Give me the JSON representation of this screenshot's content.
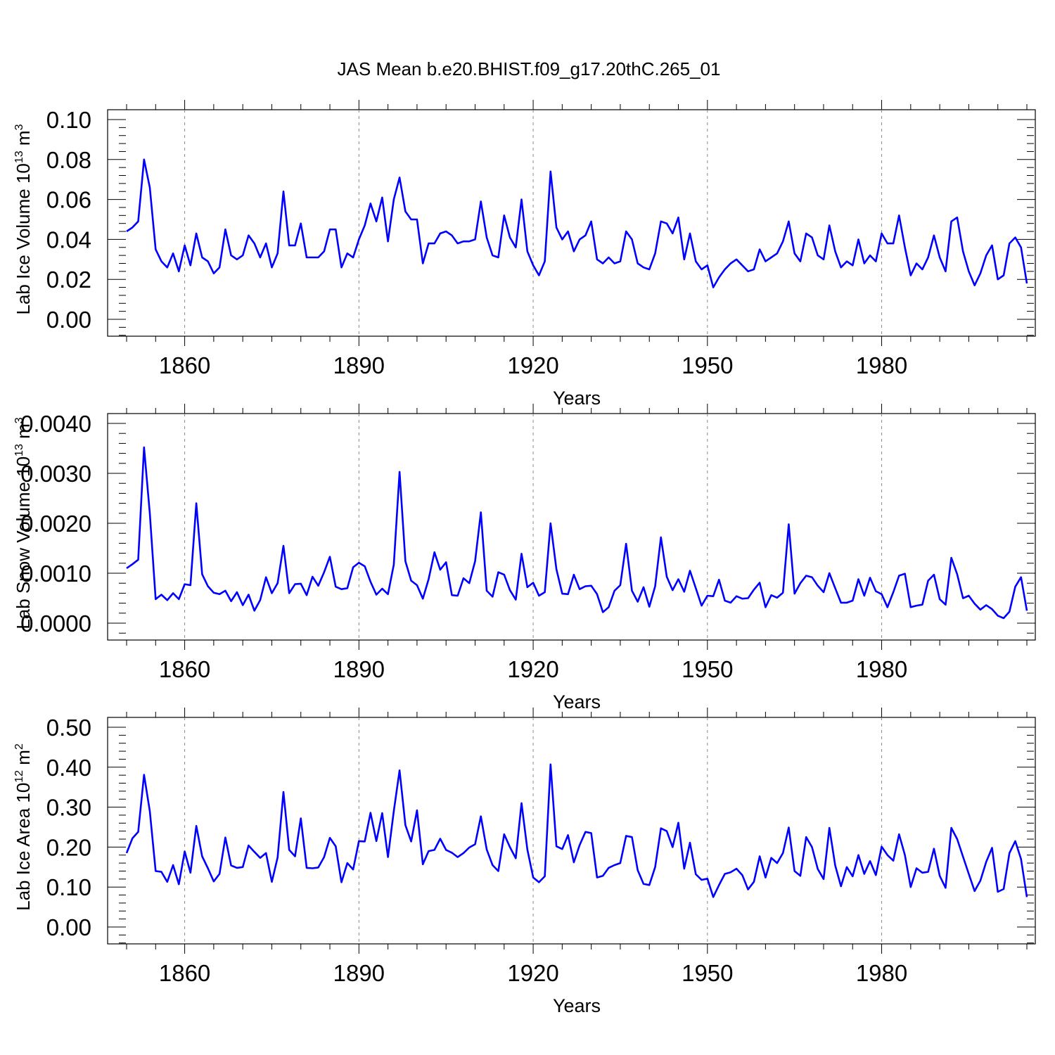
{
  "title": "JAS Mean b.e20.BHIST.f09_g17.20thC.265_01",
  "chart_data": [
    {
      "type": "line",
      "title": "JAS Mean b.e20.BHIST.f09_g17.20thC.265_01",
      "xlabel": "Years",
      "ylabel_main": "Lab Ice Volume 10",
      "ylabel_exp": "13",
      "ylabel_unit": " m",
      "ylabel_unit_exp": "3",
      "xlim": [
        1850,
        2005
      ],
      "ylim": [
        0,
        0.1
      ],
      "x_ticks": [
        1860,
        1890,
        1920,
        1950,
        1980
      ],
      "y_ticks": [
        "0.00",
        "0.02",
        "0.04",
        "0.06",
        "0.08",
        "0.10"
      ],
      "y_tick_values": [
        0,
        0.02,
        0.04,
        0.06,
        0.08,
        0.1
      ],
      "grid": "vertical dashed at labeled years",
      "series": [
        {
          "color": "#0000ff",
          "x_start": 1850,
          "values": [
            0.044,
            0.046,
            0.049,
            0.08,
            0.066,
            0.035,
            0.029,
            0.026,
            0.033,
            0.024,
            0.037,
            0.027,
            0.043,
            0.031,
            0.029,
            0.023,
            0.026,
            0.045,
            0.032,
            0.03,
            0.032,
            0.042,
            0.038,
            0.031,
            0.038,
            0.026,
            0.033,
            0.064,
            0.037,
            0.037,
            0.048,
            0.031,
            0.031,
            0.031,
            0.034,
            0.045,
            0.045,
            0.026,
            0.033,
            0.031,
            0.04,
            0.047,
            0.058,
            0.049,
            0.061,
            0.039,
            0.06,
            0.071,
            0.054,
            0.05,
            0.05,
            0.028,
            0.038,
            0.038,
            0.043,
            0.044,
            0.042,
            0.038,
            0.039,
            0.039,
            0.04,
            0.059,
            0.041,
            0.032,
            0.031,
            0.052,
            0.041,
            0.036,
            0.06,
            0.034,
            0.027,
            0.022,
            0.029,
            0.074,
            0.046,
            0.04,
            0.044,
            0.034,
            0.04,
            0.042,
            0.049,
            0.03,
            0.028,
            0.031,
            0.028,
            0.029,
            0.044,
            0.04,
            0.028,
            0.026,
            0.025,
            0.033,
            0.049,
            0.048,
            0.043,
            0.051,
            0.03,
            0.043,
            0.029,
            0.025,
            0.027,
            0.016,
            0.021,
            0.025,
            0.028,
            0.03,
            0.027,
            0.024,
            0.025,
            0.035,
            0.029,
            0.031,
            0.033,
            0.039,
            0.049,
            0.033,
            0.029,
            0.043,
            0.041,
            0.032,
            0.03,
            0.047,
            0.034,
            0.026,
            0.029,
            0.027,
            0.04,
            0.028,
            0.032,
            0.029,
            0.043,
            0.038,
            0.038,
            0.052,
            0.036,
            0.022,
            0.028,
            0.025,
            0.031,
            0.042,
            0.031,
            0.024,
            0.049,
            0.051,
            0.034,
            0.024,
            0.017,
            0.023,
            0.032,
            0.037,
            0.02,
            0.022,
            0.038,
            0.041,
            0.036,
            0.018
          ]
        }
      ]
    },
    {
      "type": "line",
      "xlabel": "Years",
      "ylabel_main": "Lab Snow Volume 10",
      "ylabel_exp": "13",
      "ylabel_unit": " m",
      "ylabel_unit_exp": "3",
      "xlim": [
        1850,
        2005
      ],
      "ylim": [
        0,
        0.004
      ],
      "x_ticks": [
        1860,
        1890,
        1920,
        1950,
        1980
      ],
      "y_ticks": [
        "0.0000",
        "0.0010",
        "0.0020",
        "0.0030",
        "0.0040"
      ],
      "y_tick_values": [
        0,
        0.001,
        0.002,
        0.003,
        0.004
      ],
      "grid": "vertical dashed at labeled years",
      "series": [
        {
          "color": "#0000ff",
          "x_start": 1850,
          "values": [
            0.0011,
            0.00118,
            0.00127,
            0.00352,
            0.0022,
            0.00048,
            0.00057,
            0.00046,
            0.0006,
            0.00048,
            0.00078,
            0.00076,
            0.0024,
            0.00098,
            0.00074,
            0.00061,
            0.00058,
            0.00065,
            0.00044,
            0.00062,
            0.00036,
            0.00057,
            0.00025,
            0.00046,
            0.00092,
            0.0006,
            0.0008,
            0.00155,
            0.0006,
            0.00078,
            0.00079,
            0.00056,
            0.00093,
            0.00075,
            0.00102,
            0.00133,
            0.00073,
            0.00068,
            0.0007,
            0.00112,
            0.00121,
            0.00114,
            0.00083,
            0.00057,
            0.00069,
            0.00058,
            0.00117,
            0.00303,
            0.00124,
            0.00085,
            0.00076,
            0.00049,
            0.00088,
            0.00142,
            0.00107,
            0.00122,
            0.00056,
            0.00055,
            0.0009,
            0.0008,
            0.00124,
            0.00222,
            0.00065,
            0.00053,
            0.00102,
            0.00097,
            0.00066,
            0.00047,
            0.00139,
            0.00072,
            0.00081,
            0.00055,
            0.00062,
            0.002,
            0.00108,
            0.00059,
            0.00058,
            0.00097,
            0.00068,
            0.00074,
            0.00075,
            0.00058,
            0.00022,
            0.00032,
            0.00065,
            0.00076,
            0.00159,
            0.00065,
            0.00043,
            0.00072,
            0.00033,
            0.00074,
            0.00172,
            0.00093,
            0.00066,
            0.00088,
            0.00063,
            0.00105,
            0.0007,
            0.00035,
            0.00055,
            0.00054,
            0.00087,
            0.00045,
            0.00041,
            0.00054,
            0.00049,
            0.0005,
            0.00067,
            0.00081,
            0.00032,
            0.00056,
            0.00051,
            0.00061,
            0.00198,
            0.00059,
            0.0008,
            0.00095,
            0.00092,
            0.00075,
            0.00062,
            0.001,
            0.0007,
            0.00041,
            0.00041,
            0.00045,
            0.00088,
            0.00055,
            0.00091,
            0.00064,
            0.00058,
            0.00032,
            0.00062,
            0.00095,
            0.00099,
            0.00032,
            0.00035,
            0.00037,
            0.00085,
            0.00097,
            0.00048,
            0.00037,
            0.00131,
            0.00098,
            0.0005,
            0.00055,
            0.00039,
            0.00027,
            0.00036,
            0.00028,
            0.00015,
            0.0001,
            0.00023,
            0.00073,
            0.00092,
            0.00025
          ]
        }
      ]
    },
    {
      "type": "line",
      "xlabel": "Years",
      "ylabel_main": "Lab Ice Area 10",
      "ylabel_exp": "12",
      "ylabel_unit": " m",
      "ylabel_unit_exp": "2",
      "xlim": [
        1850,
        2005
      ],
      "ylim": [
        0,
        0.5
      ],
      "x_ticks": [
        1860,
        1890,
        1920,
        1950,
        1980
      ],
      "y_ticks": [
        "0.00",
        "0.10",
        "0.20",
        "0.30",
        "0.40",
        "0.50"
      ],
      "y_tick_values": [
        0,
        0.1,
        0.2,
        0.3,
        0.4,
        0.5
      ],
      "grid": "vertical dashed at labeled years",
      "series": [
        {
          "color": "#0000ff",
          "x_start": 1850,
          "values": [
            0.185,
            0.222,
            0.238,
            0.381,
            0.29,
            0.14,
            0.138,
            0.113,
            0.155,
            0.107,
            0.189,
            0.136,
            0.253,
            0.177,
            0.147,
            0.114,
            0.133,
            0.224,
            0.154,
            0.148,
            0.15,
            0.204,
            0.188,
            0.173,
            0.185,
            0.113,
            0.174,
            0.338,
            0.193,
            0.177,
            0.272,
            0.148,
            0.147,
            0.149,
            0.175,
            0.223,
            0.202,
            0.112,
            0.16,
            0.144,
            0.215,
            0.214,
            0.286,
            0.215,
            0.285,
            0.175,
            0.29,
            0.392,
            0.255,
            0.214,
            0.292,
            0.157,
            0.19,
            0.193,
            0.221,
            0.193,
            0.186,
            0.175,
            0.185,
            0.199,
            0.207,
            0.277,
            0.194,
            0.155,
            0.14,
            0.232,
            0.2,
            0.172,
            0.31,
            0.194,
            0.124,
            0.112,
            0.127,
            0.407,
            0.202,
            0.195,
            0.23,
            0.162,
            0.205,
            0.238,
            0.235,
            0.124,
            0.128,
            0.148,
            0.155,
            0.16,
            0.228,
            0.225,
            0.142,
            0.108,
            0.105,
            0.15,
            0.247,
            0.24,
            0.2,
            0.261,
            0.146,
            0.211,
            0.132,
            0.118,
            0.121,
            0.075,
            0.105,
            0.133,
            0.137,
            0.146,
            0.13,
            0.094,
            0.113,
            0.177,
            0.124,
            0.173,
            0.16,
            0.185,
            0.249,
            0.14,
            0.128,
            0.225,
            0.2,
            0.145,
            0.12,
            0.248,
            0.154,
            0.102,
            0.15,
            0.127,
            0.18,
            0.133,
            0.165,
            0.13,
            0.201,
            0.18,
            0.166,
            0.232,
            0.18,
            0.1,
            0.147,
            0.136,
            0.138,
            0.196,
            0.128,
            0.098,
            0.248,
            0.22,
            0.176,
            0.133,
            0.09,
            0.116,
            0.163,
            0.198,
            0.088,
            0.095,
            0.185,
            0.215,
            0.17,
            0.075
          ]
        }
      ]
    }
  ]
}
